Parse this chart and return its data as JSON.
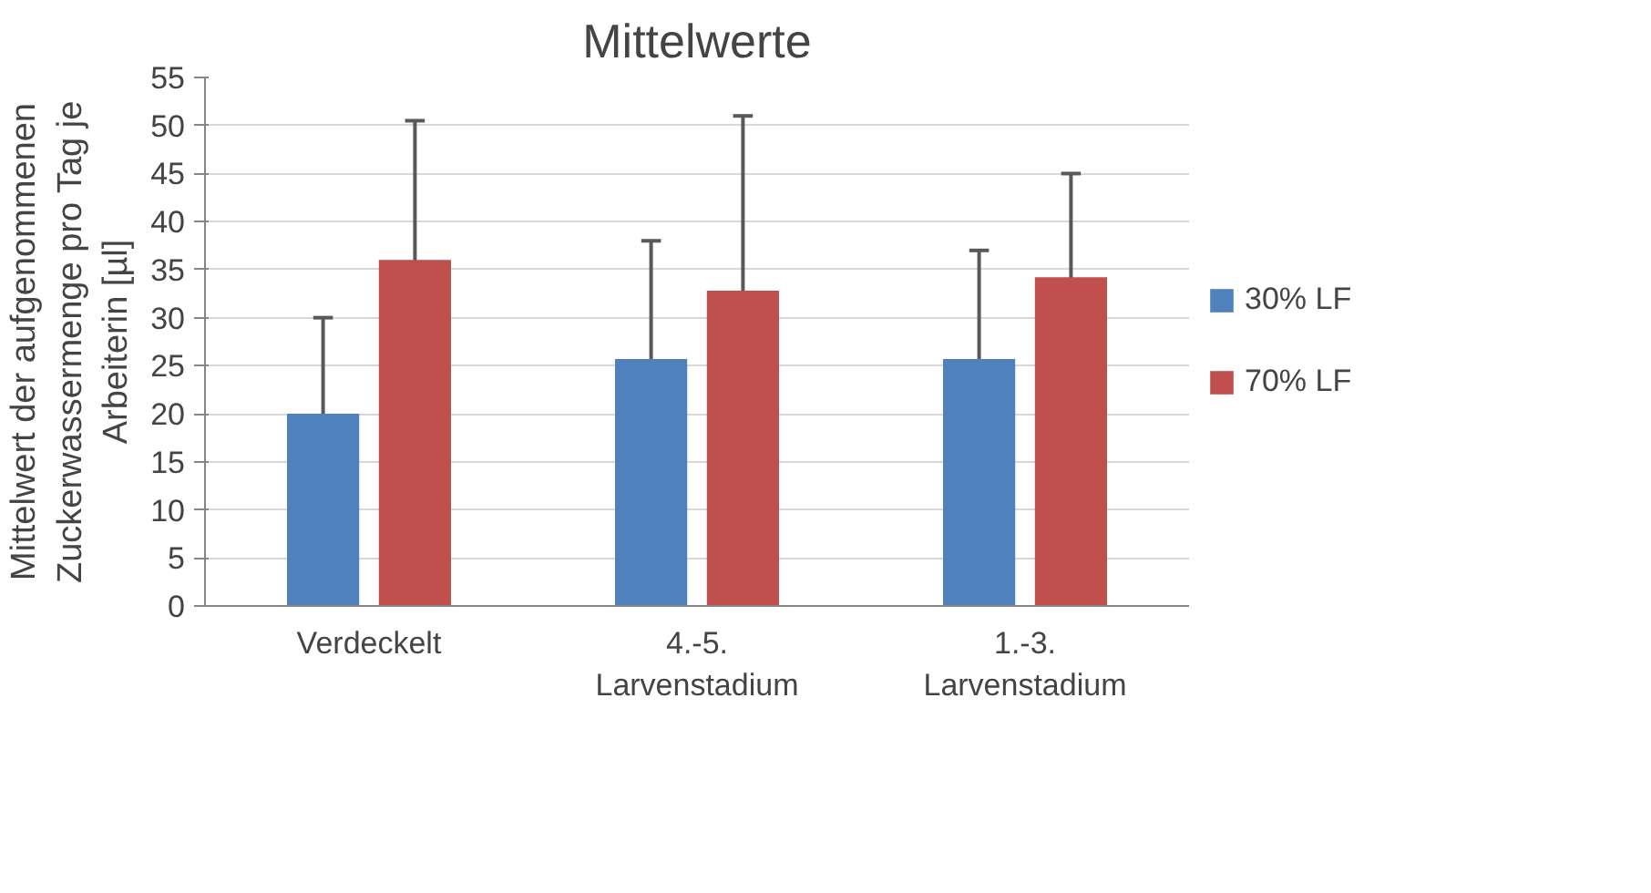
{
  "chart_data": {
    "type": "bar",
    "title": "Mittelwerte",
    "ylabel": "Mittelwert der aufgenommenen Zuckerwassermenge pro Tag je Arbeiterin [µl]",
    "categories": [
      "Verdeckelt",
      "4.-5. Larvenstadium",
      "1.-3. Larvenstadium"
    ],
    "series": [
      {
        "name": "30% LF",
        "color": "#4f81bd",
        "values": [
          20,
          25.7,
          25.7
        ],
        "errors": [
          10,
          12.3,
          11.3
        ]
      },
      {
        "name": "70% LF",
        "color": "#c0504d",
        "values": [
          36,
          32.8,
          34.2
        ],
        "errors": [
          14.5,
          18.2,
          10.8
        ]
      }
    ],
    "ylim": [
      0,
      55
    ],
    "yticks": [
      0,
      5,
      10,
      15,
      20,
      25,
      30,
      35,
      40,
      45,
      50,
      55
    ],
    "grid": "y",
    "legend": "right"
  }
}
